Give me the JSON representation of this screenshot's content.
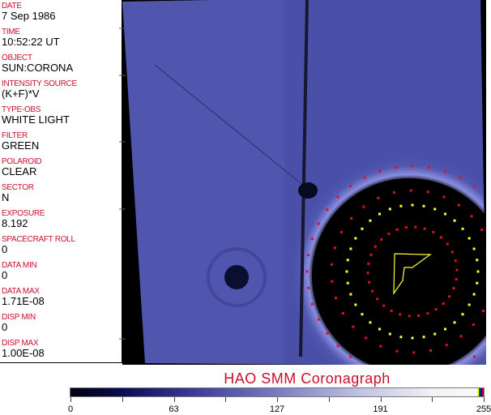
{
  "fields": [
    {
      "label": "DATE",
      "value": "7 Sep 1986"
    },
    {
      "label": "TIME",
      "value": "10:52:22 UT"
    },
    {
      "label": "OBJECT",
      "value": "SUN:CORONA"
    },
    {
      "label": "INTENSITY SOURCE",
      "value": "(K+F)*V"
    },
    {
      "label": "TYPE-OBS",
      "value": "WHITE LIGHT"
    },
    {
      "label": "FILTER",
      "value": "GREEN"
    },
    {
      "label": "POLAROID",
      "value": "CLEAR"
    },
    {
      "label": "SECTOR",
      "value": "N"
    },
    {
      "label": "EXPOSURE",
      "value": "8.192"
    },
    {
      "label": "SPACECRAFT ROLL",
      "value": "0"
    },
    {
      "label": "DATA MIN",
      "value": "0"
    },
    {
      "label": "DATA MAX",
      "value": "1.71E-08"
    },
    {
      "label": "DISP MIN",
      "value": "0"
    },
    {
      "label": "DISP MAX",
      "value": "1.00E-08"
    }
  ],
  "title": "HAO  SMM Coronagraph",
  "colorbar": {
    "ticks": [
      "0",
      "63",
      "127",
      "191",
      "255"
    ]
  },
  "colors": {
    "label": "#c8102e",
    "image_blue": "#4a4fa8",
    "yellow": "#ffff33",
    "red": "#e01020"
  }
}
